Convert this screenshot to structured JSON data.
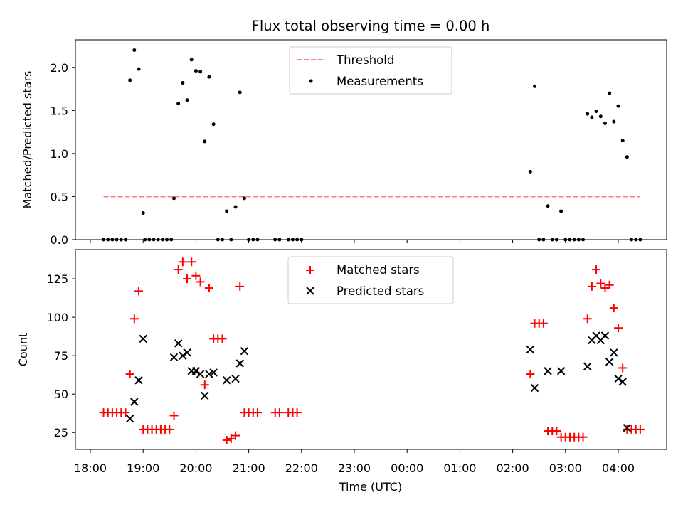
{
  "title": "Flux total observing time = 0.00 h",
  "xlabel": "Time (UTC)",
  "x_tick_labels": [
    "18:00",
    "19:00",
    "20:00",
    "21:00",
    "22:00",
    "23:00",
    "00:00",
    "01:00",
    "02:00",
    "03:00",
    "04:00"
  ],
  "chart_data": [
    {
      "type": "scatter",
      "ylabel": "Matched/Predicted stars",
      "ylim": [
        0,
        2.32
      ],
      "y_ticks": [
        "0.0",
        "0.5",
        "1.0",
        "1.5",
        "2.0"
      ],
      "y_tick_values": [
        0,
        0.5,
        1.0,
        1.5,
        2.0
      ],
      "legend_position": "top-center",
      "threshold": {
        "name": "Threshold",
        "value": 0.5,
        "x_range": [
          "18:15",
          "04:25"
        ],
        "color": "#ff7f7f",
        "style": "dashed"
      },
      "series": [
        {
          "name": "Measurements",
          "color": "#000000",
          "marker": "dot",
          "points": [
            [
              "18:15",
              0
            ],
            [
              "18:20",
              0
            ],
            [
              "18:25",
              0
            ],
            [
              "18:30",
              0
            ],
            [
              "18:35",
              0
            ],
            [
              "18:40",
              0
            ],
            [
              "18:45",
              1.85
            ],
            [
              "18:50",
              2.2
            ],
            [
              "18:55",
              1.98
            ],
            [
              "19:00",
              0.31
            ],
            [
              "19:02",
              0
            ],
            [
              "19:07",
              0
            ],
            [
              "19:12",
              0
            ],
            [
              "19:17",
              0
            ],
            [
              "19:22",
              0
            ],
            [
              "19:27",
              0
            ],
            [
              "19:32",
              0
            ],
            [
              "19:35",
              0.48
            ],
            [
              "19:40",
              1.58
            ],
            [
              "19:45",
              1.82
            ],
            [
              "19:50",
              1.62
            ],
            [
              "19:55",
              2.09
            ],
            [
              "20:00",
              1.96
            ],
            [
              "20:05",
              1.95
            ],
            [
              "20:10",
              1.14
            ],
            [
              "20:15",
              1.89
            ],
            [
              "20:20",
              1.34
            ],
            [
              "20:25",
              0
            ],
            [
              "20:30",
              0
            ],
            [
              "20:35",
              0.33
            ],
            [
              "20:40",
              0
            ],
            [
              "20:45",
              0.38
            ],
            [
              "20:50",
              1.71
            ],
            [
              "20:55",
              0.48
            ],
            [
              "21:00",
              0
            ],
            [
              "21:05",
              0
            ],
            [
              "21:10",
              0
            ],
            [
              "21:30",
              0
            ],
            [
              "21:35",
              0
            ],
            [
              "21:45",
              0
            ],
            [
              "21:50",
              0
            ],
            [
              "21:55",
              0
            ],
            [
              "22:00",
              0
            ],
            [
              "02:20",
              0.79
            ],
            [
              "02:25",
              1.78
            ],
            [
              "02:30",
              0
            ],
            [
              "02:35",
              0
            ],
            [
              "02:40",
              0.39
            ],
            [
              "02:45",
              0
            ],
            [
              "02:50",
              0
            ],
            [
              "02:55",
              0.33
            ],
            [
              "03:00",
              0
            ],
            [
              "03:05",
              0
            ],
            [
              "03:10",
              0
            ],
            [
              "03:15",
              0
            ],
            [
              "03:20",
              0
            ],
            [
              "03:25",
              1.46
            ],
            [
              "03:30",
              1.42
            ],
            [
              "03:35",
              1.49
            ],
            [
              "03:40",
              1.43
            ],
            [
              "03:45",
              1.35
            ],
            [
              "03:50",
              1.7
            ],
            [
              "03:55",
              1.37
            ],
            [
              "04:00",
              1.55
            ],
            [
              "04:05",
              1.15
            ],
            [
              "04:10",
              0.96
            ],
            [
              "04:15",
              0
            ],
            [
              "04:20",
              0
            ],
            [
              "04:25",
              0
            ]
          ]
        }
      ]
    },
    {
      "type": "scatter",
      "ylabel": "Count",
      "ylim": [
        14,
        144
      ],
      "y_ticks": [
        "25",
        "50",
        "75",
        "100",
        "125"
      ],
      "y_tick_values": [
        25,
        50,
        75,
        100,
        125
      ],
      "legend_position": "top-center",
      "series": [
        {
          "name": "Matched stars",
          "color": "#ff0000",
          "marker": "plus",
          "points": [
            [
              "18:15",
              38
            ],
            [
              "18:20",
              38
            ],
            [
              "18:25",
              38
            ],
            [
              "18:30",
              38
            ],
            [
              "18:35",
              38
            ],
            [
              "18:40",
              38
            ],
            [
              "18:45",
              63
            ],
            [
              "18:50",
              99
            ],
            [
              "18:55",
              117
            ],
            [
              "19:00",
              27
            ],
            [
              "19:05",
              27
            ],
            [
              "19:10",
              27
            ],
            [
              "19:15",
              27
            ],
            [
              "19:20",
              27
            ],
            [
              "19:25",
              27
            ],
            [
              "19:30",
              27
            ],
            [
              "19:35",
              36
            ],
            [
              "19:40",
              131
            ],
            [
              "19:45",
              136
            ],
            [
              "19:50",
              125
            ],
            [
              "19:55",
              136
            ],
            [
              "20:00",
              127
            ],
            [
              "20:05",
              123
            ],
            [
              "20:10",
              56
            ],
            [
              "20:15",
              119
            ],
            [
              "20:20",
              86
            ],
            [
              "20:25",
              86
            ],
            [
              "20:30",
              86
            ],
            [
              "20:35",
              20
            ],
            [
              "20:40",
              21
            ],
            [
              "20:45",
              23
            ],
            [
              "20:50",
              120
            ],
            [
              "20:55",
              38
            ],
            [
              "21:00",
              38
            ],
            [
              "21:05",
              38
            ],
            [
              "21:10",
              38
            ],
            [
              "21:30",
              38
            ],
            [
              "21:35",
              38
            ],
            [
              "21:45",
              38
            ],
            [
              "21:50",
              38
            ],
            [
              "21:55",
              38
            ],
            [
              "02:20",
              63
            ],
            [
              "02:25",
              96
            ],
            [
              "02:30",
              96
            ],
            [
              "02:35",
              96
            ],
            [
              "02:40",
              26
            ],
            [
              "02:45",
              26
            ],
            [
              "02:50",
              26
            ],
            [
              "02:55",
              22
            ],
            [
              "03:00",
              22
            ],
            [
              "03:05",
              22
            ],
            [
              "03:10",
              22
            ],
            [
              "03:15",
              22
            ],
            [
              "03:20",
              22
            ],
            [
              "03:25",
              99
            ],
            [
              "03:30",
              120
            ],
            [
              "03:35",
              131
            ],
            [
              "03:40",
              122
            ],
            [
              "03:45",
              119
            ],
            [
              "03:50",
              121
            ],
            [
              "03:55",
              106
            ],
            [
              "04:00",
              93
            ],
            [
              "04:05",
              67
            ],
            [
              "04:10",
              27
            ],
            [
              "04:15",
              27
            ],
            [
              "04:20",
              27
            ],
            [
              "04:25",
              27
            ]
          ]
        },
        {
          "name": "Predicted stars",
          "color": "#000000",
          "marker": "x",
          "points": [
            [
              "18:45",
              34
            ],
            [
              "18:50",
              45
            ],
            [
              "18:55",
              59
            ],
            [
              "19:00",
              86
            ],
            [
              "19:35",
              74
            ],
            [
              "19:40",
              83
            ],
            [
              "19:45",
              75
            ],
            [
              "19:50",
              77
            ],
            [
              "19:55",
              65
            ],
            [
              "20:00",
              65
            ],
            [
              "20:05",
              63
            ],
            [
              "20:10",
              49
            ],
            [
              "20:15",
              63
            ],
            [
              "20:20",
              64
            ],
            [
              "20:35",
              59
            ],
            [
              "20:45",
              60
            ],
            [
              "20:50",
              70
            ],
            [
              "20:55",
              78
            ],
            [
              "02:20",
              79
            ],
            [
              "02:25",
              54
            ],
            [
              "02:40",
              65
            ],
            [
              "02:55",
              65
            ],
            [
              "03:25",
              68
            ],
            [
              "03:30",
              85
            ],
            [
              "03:35",
              88
            ],
            [
              "03:40",
              85
            ],
            [
              "03:45",
              88
            ],
            [
              "03:50",
              71
            ],
            [
              "03:55",
              77
            ],
            [
              "04:00",
              60
            ],
            [
              "04:05",
              58
            ],
            [
              "04:10",
              28
            ]
          ]
        }
      ]
    }
  ]
}
